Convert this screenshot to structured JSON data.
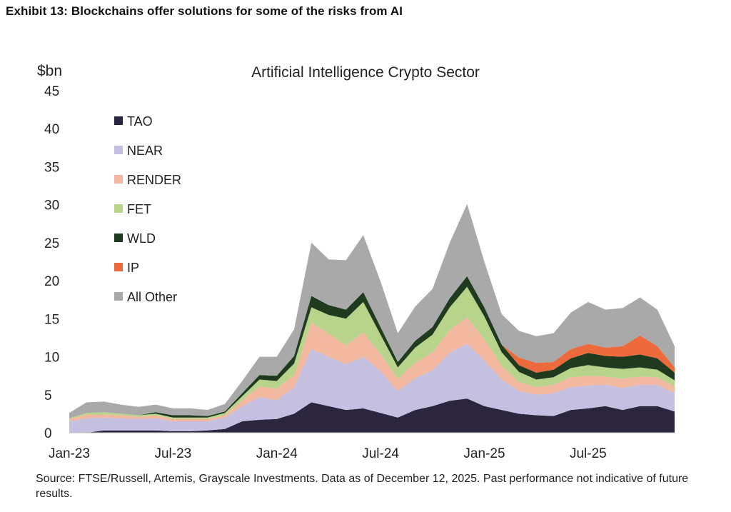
{
  "exhibit_title": "Exhibit 13: Blockchains offer solutions for some of the risks from AI",
  "source_note": "Source: FTSE/Russell, Artemis, Grayscale Investments. Data as of December 12, 2025. Past performance not indicative of future results.",
  "chart_data": {
    "type": "area",
    "stacked": true,
    "title": "Artificial Intelligence Crypto Sector",
    "ylabel": "$bn",
    "xlabel": "",
    "ylim": [
      0,
      45
    ],
    "yticks": [
      "0",
      "5",
      "10",
      "15",
      "20",
      "25",
      "30",
      "35",
      "40",
      "45"
    ],
    "xticks": [
      "Jan-23",
      "Jul-23",
      "Jan-24",
      "Jul-24",
      "Jan-25",
      "Jul-25"
    ],
    "legend_position": "upper-left",
    "x": [
      "Jan-23",
      "Feb-23",
      "Mar-23",
      "Apr-23",
      "May-23",
      "Jun-23",
      "Jul-23",
      "Aug-23",
      "Sep-23",
      "Oct-23",
      "Nov-23",
      "Dec-23",
      "Jan-24",
      "Feb-24",
      "Mar-24",
      "Apr-24",
      "May-24",
      "Jun-24",
      "Jul-24",
      "Aug-24",
      "Sep-24",
      "Oct-24",
      "Nov-24",
      "Dec-24",
      "Jan-25",
      "Feb-25",
      "Mar-25",
      "Apr-25",
      "May-25",
      "Jun-25",
      "Jul-25",
      "Aug-25",
      "Sep-25",
      "Oct-25",
      "Nov-25",
      "Dec-25"
    ],
    "series": [
      {
        "name": "TAO",
        "color": "#2b2540",
        "values": [
          0,
          0,
          0.3,
          0.3,
          0.3,
          0.3,
          0.2,
          0.2,
          0.3,
          0.5,
          1.5,
          1.7,
          1.8,
          2.5,
          4.0,
          3.5,
          3.0,
          3.2,
          2.6,
          2.0,
          3.0,
          3.5,
          4.2,
          4.5,
          3.5,
          3.0,
          2.5,
          2.3,
          2.2,
          3.0,
          3.2,
          3.5,
          3.0,
          3.5,
          3.5,
          2.8
        ]
      },
      {
        "name": "NEAR",
        "color": "#c5bfe0",
        "values": [
          1.5,
          1.9,
          1.7,
          1.6,
          1.5,
          1.6,
          1.3,
          1.3,
          1.2,
          1.5,
          2.0,
          3.0,
          2.5,
          3.5,
          7.0,
          6.5,
          6.0,
          6.8,
          5.5,
          3.5,
          4.2,
          4.7,
          6.3,
          7.2,
          6.0,
          4.0,
          3.0,
          2.7,
          3.0,
          3.0,
          3.0,
          2.8,
          2.9,
          2.8,
          2.8,
          2.4
        ]
      },
      {
        "name": "RENDER",
        "color": "#f2b8a0",
        "values": [
          0.3,
          0.5,
          0.4,
          0.4,
          0.3,
          0.4,
          0.3,
          0.3,
          0.3,
          0.3,
          0.8,
          1.4,
          1.5,
          1.6,
          3.5,
          3.0,
          2.5,
          3.2,
          2.3,
          1.6,
          2.0,
          2.4,
          3.0,
          3.5,
          2.8,
          1.8,
          1.2,
          1.0,
          1.1,
          1.3,
          1.3,
          1.1,
          1.2,
          1.1,
          1.0,
          0.9
        ]
      },
      {
        "name": "FET",
        "color": "#b7d48a",
        "values": [
          0.1,
          0.2,
          0.3,
          0.2,
          0.2,
          0.2,
          0.2,
          0.2,
          0.2,
          0.3,
          0.5,
          0.9,
          1.0,
          1.5,
          2.0,
          2.5,
          3.5,
          4.0,
          2.5,
          1.5,
          2.0,
          2.3,
          3.0,
          4.0,
          3.0,
          1.8,
          1.3,
          1.0,
          1.0,
          1.2,
          1.4,
          1.2,
          1.3,
          1.2,
          1.0,
          0.8
        ]
      },
      {
        "name": "WLD",
        "color": "#1f3a1e",
        "values": [
          0,
          0,
          0,
          0,
          0,
          0.2,
          0.3,
          0.3,
          0.2,
          0.2,
          0.4,
          0.6,
          0.7,
          1.0,
          1.5,
          1.3,
          1.2,
          1.3,
          1.0,
          0.7,
          0.9,
          1.0,
          1.2,
          1.4,
          1.2,
          1.0,
          0.9,
          0.9,
          1.0,
          1.3,
          1.6,
          1.5,
          1.6,
          1.7,
          1.5,
          1.0
        ]
      },
      {
        "name": "IP",
        "color": "#ec6a3c",
        "values": [
          0,
          0,
          0,
          0,
          0,
          0,
          0,
          0,
          0,
          0,
          0,
          0,
          0,
          0,
          0,
          0,
          0,
          0,
          0,
          0,
          0,
          0,
          0,
          0,
          0,
          0,
          1.0,
          1.3,
          1.0,
          1.2,
          1.2,
          1.1,
          1.4,
          2.5,
          1.6,
          0.7
        ]
      },
      {
        "name": "All Other",
        "color": "#a9a9a9",
        "values": [
          0.7,
          1.4,
          1.4,
          1.2,
          1.1,
          1.0,
          0.9,
          0.9,
          0.8,
          1.0,
          1.6,
          2.4,
          2.5,
          3.5,
          7.0,
          6.0,
          6.5,
          7.5,
          6.0,
          3.8,
          4.5,
          5.0,
          7.3,
          9.5,
          6.0,
          4.0,
          3.5,
          3.5,
          3.8,
          4.8,
          5.5,
          5.0,
          5.0,
          5.0,
          4.8,
          2.8
        ]
      }
    ]
  }
}
